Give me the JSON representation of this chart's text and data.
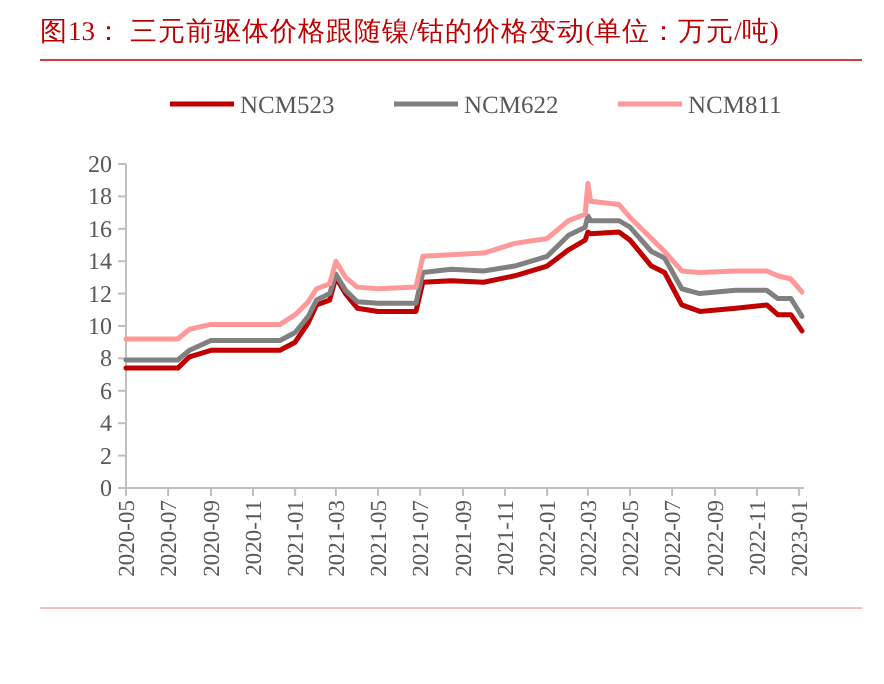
{
  "chart_data": {
    "type": "line",
    "title": "图13：  三元前驱体价格跟随镍/钴的价格变动(单位：万元/吨)",
    "x": [
      "2020-05-01",
      "2020-07-15",
      "2020-08-01",
      "2020-09-01",
      "2020-12-10",
      "2021-01-01",
      "2021-01-20",
      "2021-02-01",
      "2021-02-20",
      "2021-03-01",
      "2021-03-15",
      "2021-04-01",
      "2021-05-01",
      "2021-06-25",
      "2021-07-05",
      "2021-08-15",
      "2021-10-01",
      "2021-11-15",
      "2022-01-01",
      "2022-02-01",
      "2022-02-25",
      "2022-03-01",
      "2022-03-05",
      "2022-04-15",
      "2022-05-01",
      "2022-06-01",
      "2022-06-20",
      "2022-07-15",
      "2022-08-10",
      "2022-10-01",
      "2022-11-15",
      "2022-12-01",
      "2022-12-20",
      "2023-01-05"
    ],
    "series": [
      {
        "name": "NCM523",
        "color": "#c00000",
        "values": [
          7.4,
          7.4,
          8.1,
          8.5,
          8.5,
          9.0,
          10.2,
          11.3,
          11.6,
          13.0,
          12.0,
          11.1,
          10.9,
          10.9,
          12.7,
          12.8,
          12.7,
          13.1,
          13.7,
          14.7,
          15.3,
          15.8,
          15.7,
          15.8,
          15.3,
          13.7,
          13.3,
          11.3,
          10.9,
          11.1,
          11.3,
          10.7,
          10.7,
          9.7
        ]
      },
      {
        "name": "NCM622",
        "color": "#808080",
        "values": [
          7.9,
          7.9,
          8.5,
          9.1,
          9.1,
          9.6,
          10.6,
          11.6,
          12.0,
          13.2,
          12.2,
          11.5,
          11.4,
          11.4,
          13.3,
          13.5,
          13.4,
          13.7,
          14.3,
          15.6,
          16.1,
          16.8,
          16.5,
          16.5,
          16.1,
          14.6,
          14.2,
          12.3,
          12.0,
          12.2,
          12.2,
          11.7,
          11.7,
          10.6
        ]
      },
      {
        "name": "NCM811",
        "color": "#ff9999",
        "values": [
          9.2,
          9.2,
          9.8,
          10.1,
          10.1,
          10.7,
          11.5,
          12.3,
          12.6,
          14.0,
          13.0,
          12.4,
          12.3,
          12.4,
          14.3,
          14.4,
          14.5,
          15.1,
          15.4,
          16.5,
          16.9,
          18.8,
          17.7,
          17.5,
          16.7,
          15.4,
          14.6,
          13.4,
          13.3,
          13.4,
          13.4,
          13.1,
          12.9,
          12.1
        ]
      }
    ],
    "xlim": [
      "2020-05-01",
      "2023-01-08"
    ],
    "xticks": [
      "2020-05",
      "2020-07",
      "2020-09",
      "2020-11",
      "2021-01",
      "2021-03",
      "2021-05",
      "2021-07",
      "2021-09",
      "2021-11",
      "2022-01",
      "2022-03",
      "2022-05",
      "2022-07",
      "2022-09",
      "2022-11",
      "2023-01"
    ],
    "ylim": [
      0,
      20
    ],
    "yticks": [
      0,
      2,
      4,
      6,
      8,
      10,
      12,
      14,
      16,
      18,
      20
    ],
    "grid": false,
    "legend": "top",
    "marker": "none",
    "line_style": "solid"
  }
}
